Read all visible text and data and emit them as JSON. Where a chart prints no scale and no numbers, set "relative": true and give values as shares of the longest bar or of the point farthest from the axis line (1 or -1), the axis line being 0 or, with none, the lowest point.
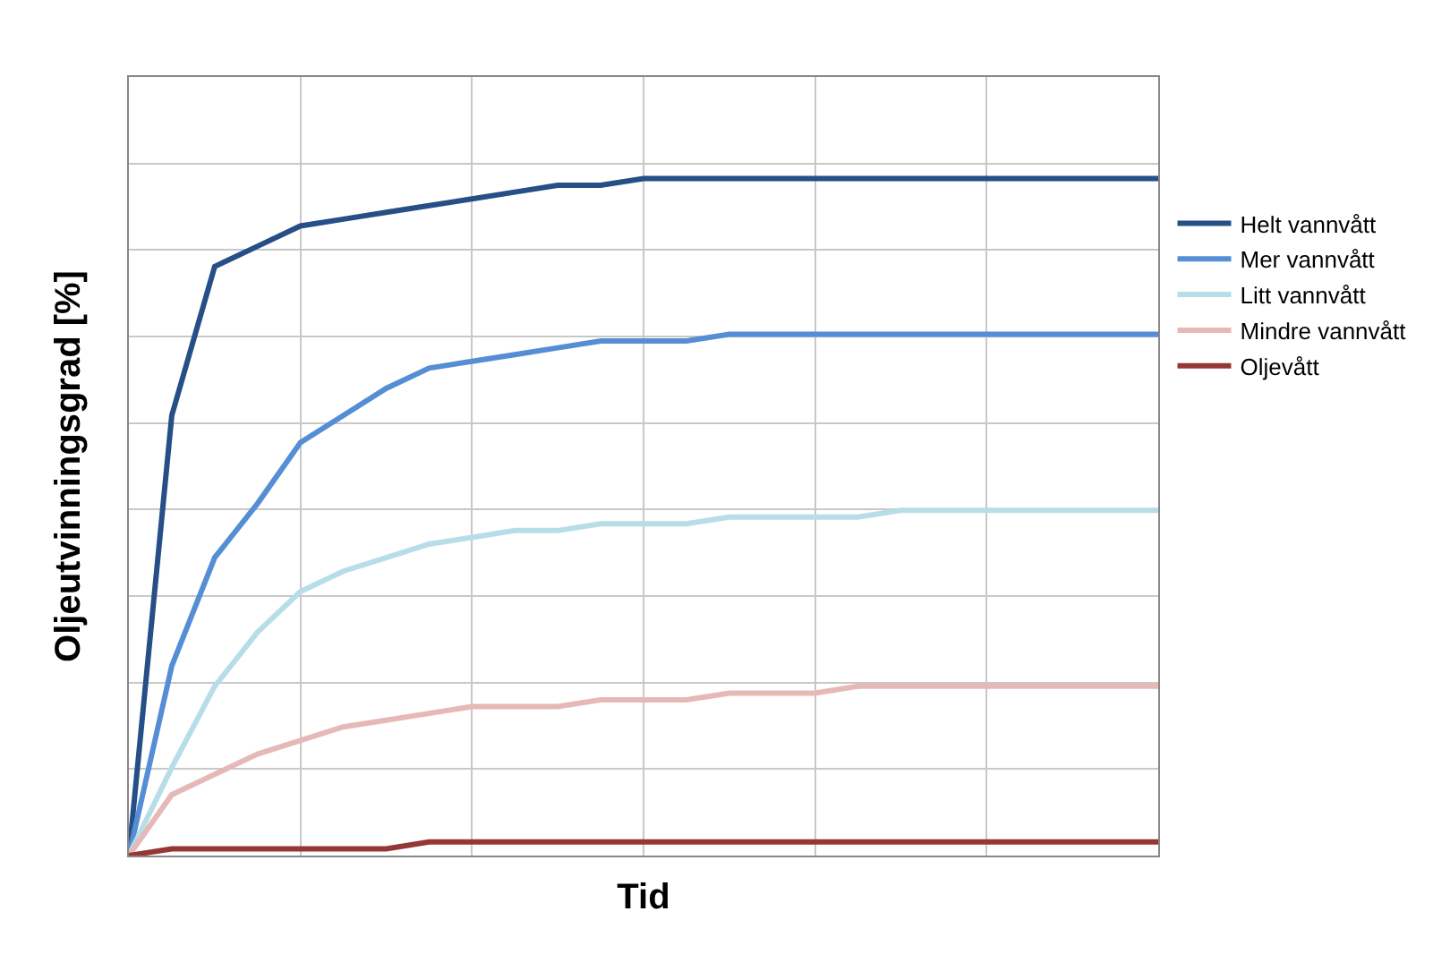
{
  "chart_data": {
    "type": "line",
    "relative": true,
    "xlabel": "Tid",
    "ylabel": "Oljeutvinningsgrad [%]",
    "grid": true,
    "legend": "right",
    "marker": "none",
    "line_style": "solid",
    "categories": [
      null,
      null,
      null,
      null,
      null,
      null,
      null,
      null,
      null,
      null,
      null,
      null,
      null,
      null,
      null,
      null,
      null,
      null,
      null,
      null,
      null,
      null,
      null,
      null,
      null
    ],
    "series": [
      {
        "name": "Helt vannvått",
        "color": "#254f86",
        "values": [
          0,
          0.65,
          0.87,
          0.9,
          0.93,
          0.94,
          0.95,
          0.96,
          0.97,
          0.98,
          0.99,
          0.99,
          1,
          1,
          1,
          1,
          1,
          1,
          1,
          1,
          1,
          1,
          1,
          1,
          1
        ]
      },
      {
        "name": "Mer vannvått",
        "color": "#558ed5",
        "values": [
          0,
          0.28,
          0.44,
          0.52,
          0.61,
          0.65,
          0.69,
          0.72,
          0.73,
          0.74,
          0.75,
          0.76,
          0.76,
          0.76,
          0.77,
          0.77,
          0.77,
          0.77,
          0.77,
          0.77,
          0.77,
          0.77,
          0.77,
          0.77,
          0.77
        ]
      },
      {
        "name": "Litt vannvått",
        "color": "#b7dee8",
        "values": [
          0,
          0.13,
          0.25,
          0.33,
          0.39,
          0.42,
          0.44,
          0.46,
          0.47,
          0.48,
          0.48,
          0.49,
          0.49,
          0.49,
          0.5,
          0.5,
          0.5,
          0.5,
          0.51,
          0.51,
          0.51,
          0.51,
          0.51,
          0.51,
          0.51
        ]
      },
      {
        "name": "Mindre vannvått",
        "color": "#e6b9b8",
        "values": [
          0,
          0.09,
          0.12,
          0.15,
          0.17,
          0.19,
          0.2,
          0.21,
          0.22,
          0.22,
          0.22,
          0.23,
          0.23,
          0.23,
          0.24,
          0.24,
          0.24,
          0.25,
          0.25,
          0.25,
          0.25,
          0.25,
          0.25,
          0.25,
          0.25
        ]
      },
      {
        "name": "Oljevått",
        "color": "#953735",
        "values": [
          0,
          0.01,
          0.01,
          0.01,
          0.01,
          0.01,
          0.01,
          0.02,
          0.02,
          0.02,
          0.02,
          0.02,
          0.02,
          0.02,
          0.02,
          0.02,
          0.02,
          0.02,
          0.02,
          0.02,
          0.02,
          0.02,
          0.02,
          0.02,
          0.02
        ]
      }
    ]
  }
}
